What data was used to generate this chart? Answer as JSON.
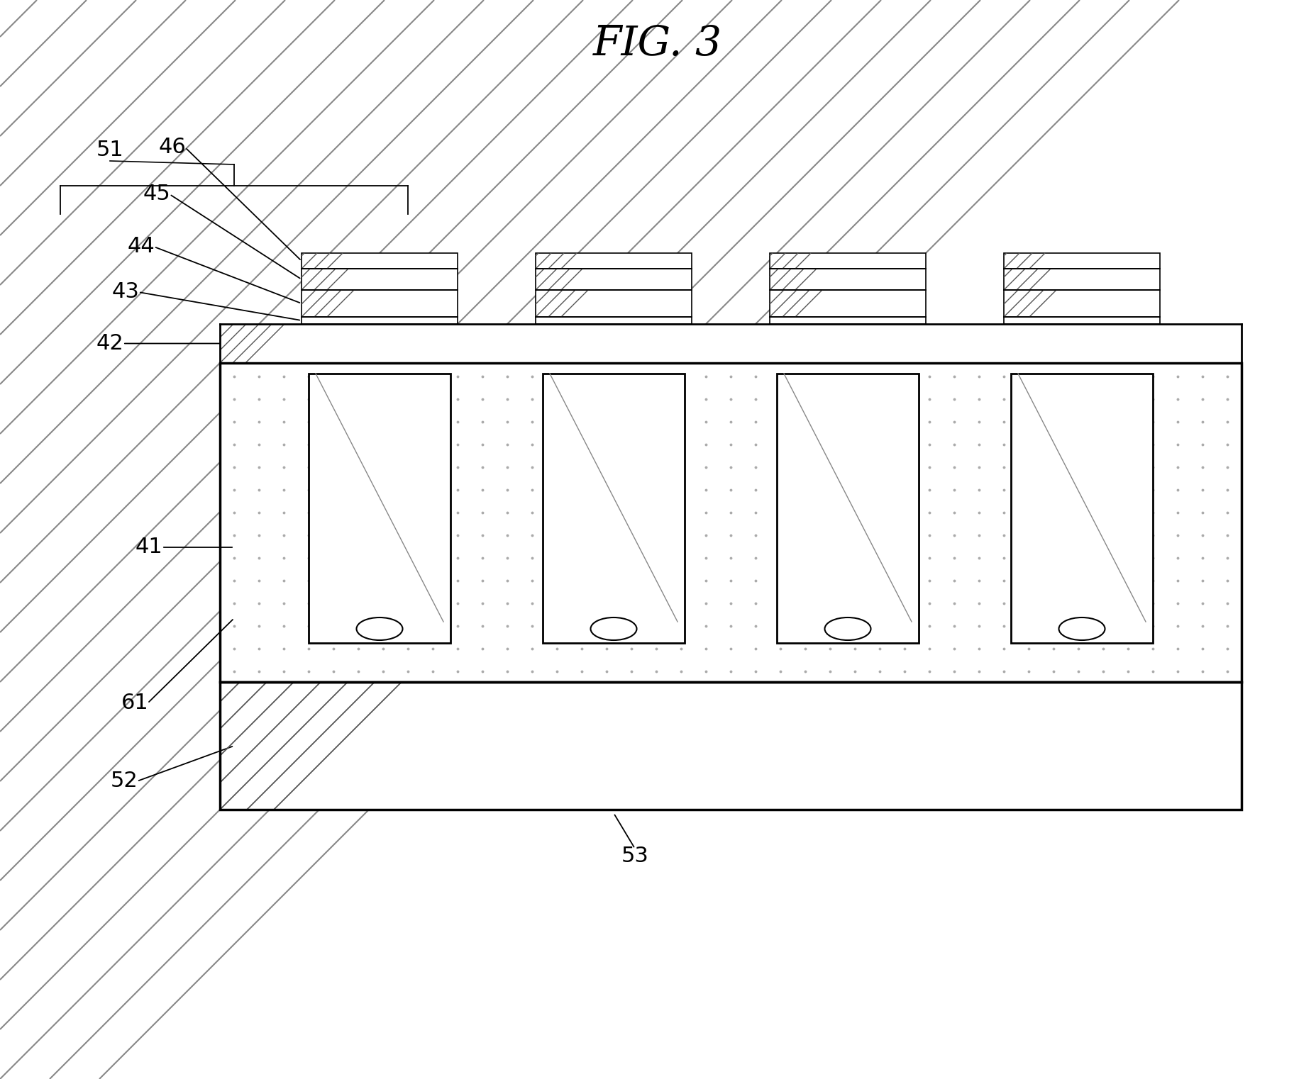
{
  "title": "FIG. 3",
  "title_fontsize": 42,
  "title_style": "italic",
  "bg_color": "#ffffff",
  "line_color": "#000000",
  "fig_width": 18.55,
  "fig_height": 15.22,
  "num_cavities": 4,
  "label_fontsize": 22,
  "labels": [
    "51",
    "46",
    "45",
    "44",
    "43",
    "42",
    "41",
    "61",
    "52",
    "53"
  ]
}
